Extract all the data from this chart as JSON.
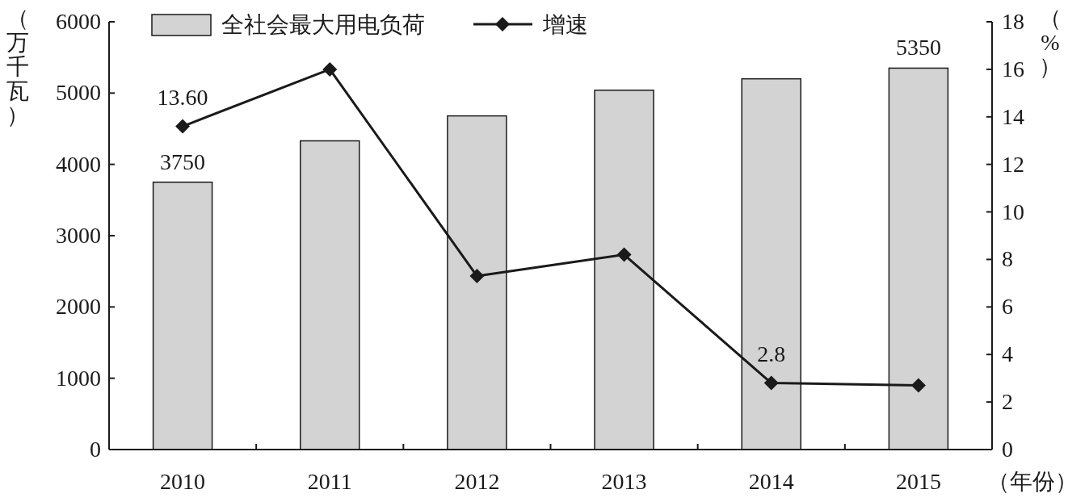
{
  "chart_data": {
    "type": "bar",
    "categories": [
      "2010",
      "2011",
      "2012",
      "2013",
      "2014",
      "2015"
    ],
    "series": [
      {
        "name": "全社会最大用电负荷",
        "color": "#d3d3d3",
        "values": [
          3750,
          4330,
          4680,
          5040,
          5200,
          5350
        ],
        "value_labels": [
          "3750",
          null,
          null,
          null,
          null,
          "5350"
        ]
      },
      {
        "name": "增速",
        "type": "line",
        "axis": "y2",
        "color": "#1a1a1a",
        "values": [
          13.6,
          16.0,
          7.3,
          8.2,
          2.8,
          2.7
        ],
        "value_labels": [
          "13.60",
          null,
          null,
          null,
          "2.8",
          null
        ]
      }
    ],
    "ylim": [
      0,
      6000
    ],
    "yticks": [
      0,
      1000,
      2000,
      3000,
      4000,
      5000,
      6000
    ],
    "y2lim": [
      0,
      18
    ],
    "y2ticks": [
      0,
      2,
      4,
      6,
      8,
      10,
      12,
      14,
      16,
      18
    ],
    "ylabel": "（万千瓦）",
    "y2label": "（%）",
    "xlabel": "（年份）",
    "legend": "top",
    "marker": "diamond",
    "line_style": "solid"
  }
}
